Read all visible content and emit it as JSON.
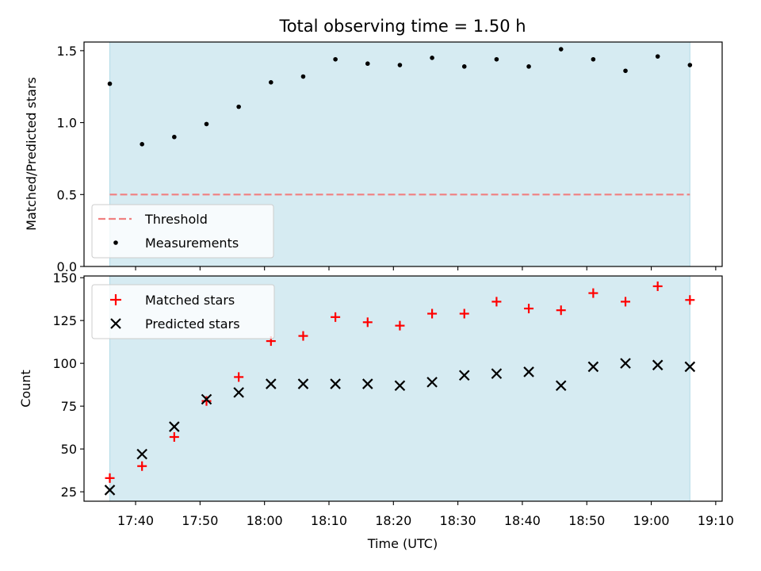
{
  "chart_data": [
    {
      "type": "scatter",
      "title": "Total observing time = 1.50 h",
      "xlabel": "",
      "ylabel": "Matched/Predicted stars",
      "ylim": [
        0,
        1.56
      ],
      "yticks": [
        0.0,
        0.5,
        1.0,
        1.5
      ],
      "ytick_labels": [
        "0.0",
        "0.5",
        "1.0",
        "1.5"
      ],
      "x": [
        "17:36",
        "17:41",
        "17:46",
        "17:51",
        "17:56",
        "18:01",
        "18:06",
        "18:11",
        "18:16",
        "18:21",
        "18:26",
        "18:31",
        "18:36",
        "18:41",
        "18:46",
        "18:51",
        "18:56",
        "19:01",
        "19:06"
      ],
      "series": [
        {
          "name": "Measurements",
          "marker": "dot",
          "color": "#000000",
          "values": [
            1.27,
            0.85,
            0.9,
            0.99,
            1.11,
            1.28,
            1.32,
            1.44,
            1.41,
            1.4,
            1.45,
            1.39,
            1.44,
            1.39,
            1.51,
            1.44,
            1.36,
            1.46,
            1.4
          ]
        }
      ],
      "threshold": {
        "name": "Threshold",
        "value": 0.5,
        "color": "#f08080"
      },
      "observing_window": {
        "start": "17:36",
        "end": "19:06",
        "color": "#add8e6"
      },
      "legend_position": "lower-left",
      "grid": false
    },
    {
      "type": "scatter",
      "xlabel": "Time (UTC)",
      "ylabel": "Count",
      "ylim": [
        19.5,
        151
      ],
      "yticks": [
        25,
        50,
        75,
        100,
        125,
        150
      ],
      "ytick_labels": [
        "25",
        "50",
        "75",
        "100",
        "125",
        "150"
      ],
      "xlim": [
        "17:32",
        "19:11"
      ],
      "xticks": [
        "17:40",
        "17:50",
        "18:00",
        "18:10",
        "18:20",
        "18:30",
        "18:40",
        "18:50",
        "19:00",
        "19:10"
      ],
      "x": [
        "17:36",
        "17:41",
        "17:46",
        "17:51",
        "17:56",
        "18:01",
        "18:06",
        "18:11",
        "18:16",
        "18:21",
        "18:26",
        "18:31",
        "18:36",
        "18:41",
        "18:46",
        "18:51",
        "18:56",
        "19:01",
        "19:06"
      ],
      "series": [
        {
          "name": "Matched stars",
          "marker": "plus",
          "color": "#ff0000",
          "values": [
            33,
            40,
            57,
            78,
            92,
            113,
            116,
            127,
            124,
            122,
            129,
            129,
            136,
            132,
            131,
            141,
            136,
            145,
            137
          ]
        },
        {
          "name": "Predicted stars",
          "marker": "x",
          "color": "#000000",
          "values": [
            26,
            47,
            63,
            79,
            83,
            88,
            88,
            88,
            88,
            87,
            89,
            93,
            94,
            95,
            87,
            98,
            100,
            99,
            98
          ]
        }
      ],
      "observing_window": {
        "start": "17:36",
        "end": "19:06",
        "color": "#add8e6"
      },
      "legend_position": "upper-left",
      "grid": false
    }
  ]
}
